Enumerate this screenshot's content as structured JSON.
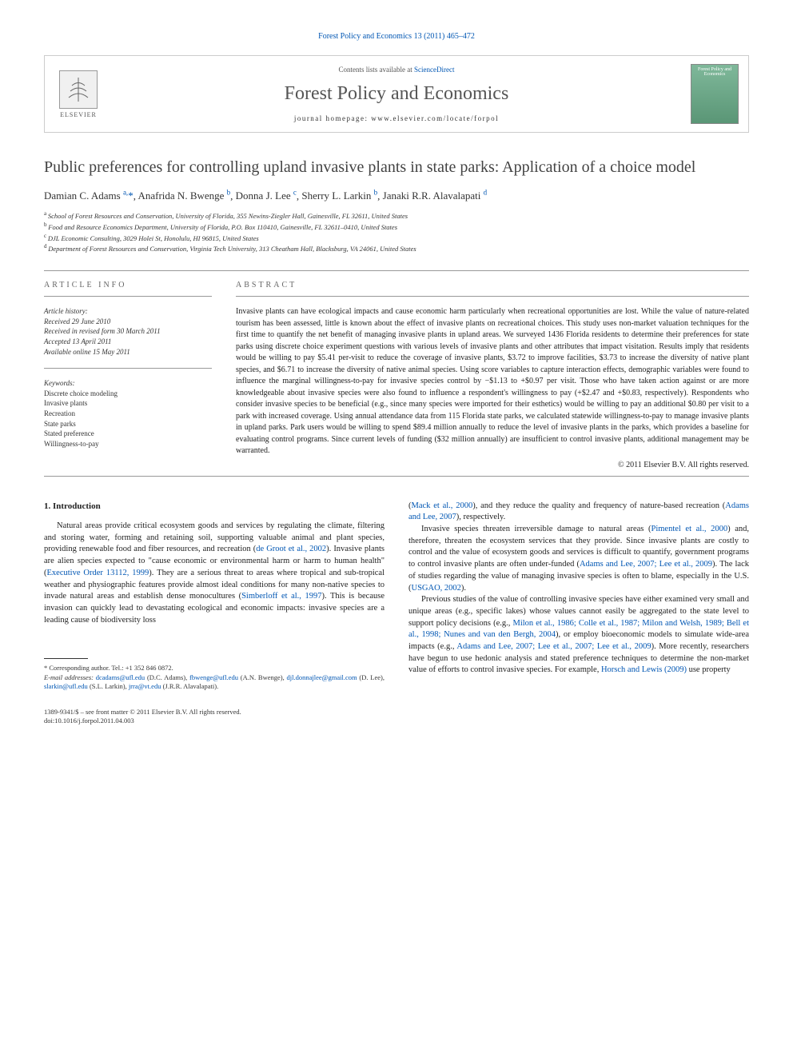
{
  "journal_ref": "Forest Policy and Economics 13 (2011) 465–472",
  "header": {
    "elsevier": "ELSEVIER",
    "contents_prefix": "Contents lists available at ",
    "contents_link": "ScienceDirect",
    "journal_name": "Forest Policy and Economics",
    "homepage": "journal homepage: www.elsevier.com/locate/forpol",
    "cover_label": "Forest Policy and Economics"
  },
  "title": "Public preferences for controlling upland invasive plants in state parks: Application of a choice model",
  "authors_html": "Damian C. Adams <sup>a,</sup>*, Anafrida N. Bwenge <sup>b</sup>, Donna J. Lee <sup>c</sup>, Sherry L. Larkin <sup>b</sup>, Janaki R.R. Alavalapati <sup>d</sup>",
  "authors": [
    {
      "name": "Damian C. Adams",
      "aff": "a",
      "corr": true
    },
    {
      "name": "Anafrida N. Bwenge",
      "aff": "b",
      "corr": false
    },
    {
      "name": "Donna J. Lee",
      "aff": "c",
      "corr": false
    },
    {
      "name": "Sherry L. Larkin",
      "aff": "b",
      "corr": false
    },
    {
      "name": "Janaki R.R. Alavalapati",
      "aff": "d",
      "corr": false
    }
  ],
  "affiliations": [
    {
      "key": "a",
      "text": "School of Forest Resources and Conservation, University of Florida, 355 Newins-Ziegler Hall, Gainesville, FL 32611, United States"
    },
    {
      "key": "b",
      "text": "Food and Resource Economics Department, University of Florida, P.O. Box 110410, Gainesville, FL 32611–0410, United States"
    },
    {
      "key": "c",
      "text": "DJL Economic Consulting, 3029 Holei St, Honolulu, HI 96815, United States"
    },
    {
      "key": "d",
      "text": "Department of Forest Resources and Conservation, Virginia Tech University, 313 Cheatham Hall, Blacksburg, VA 24061, United States"
    }
  ],
  "article_info_label": "ARTICLE INFO",
  "history": {
    "label": "Article history:",
    "received": "Received 29 June 2010",
    "revised": "Received in revised form 30 March 2011",
    "accepted": "Accepted 13 April 2011",
    "online": "Available online 15 May 2011"
  },
  "keywords": {
    "label": "Keywords:",
    "items": [
      "Discrete choice modeling",
      "Invasive plants",
      "Recreation",
      "State parks",
      "Stated preference",
      "Willingness-to-pay"
    ]
  },
  "abstract_label": "ABSTRACT",
  "abstract": "Invasive plants can have ecological impacts and cause economic harm particularly when recreational opportunities are lost. While the value of nature-related tourism has been assessed, little is known about the effect of invasive plants on recreational choices. This study uses non-market valuation techniques for the first time to quantify the net benefit of managing invasive plants in upland areas. We surveyed 1436 Florida residents to determine their preferences for state parks using discrete choice experiment questions with various levels of invasive plants and other attributes that impact visitation. Results imply that residents would be willing to pay $5.41 per-visit to reduce the coverage of invasive plants, $3.72 to improve facilities, $3.73 to increase the diversity of native plant species, and $6.71 to increase the diversity of native animal species. Using score variables to capture interaction effects, demographic variables were found to influence the marginal willingness-to-pay for invasive species control by −$1.13 to +$0.97 per visit. Those who have taken action against or are more knowledgeable about invasive species were also found to influence a respondent's willingness to pay (+$2.47 and +$0.83, respectively). Respondents who consider invasive species to be beneficial (e.g., since many species were imported for their esthetics) would be willing to pay an additional $0.80 per visit to a park with increased coverage. Using annual attendance data from 115 Florida state parks, we calculated statewide willingness-to-pay to manage invasive plants in upland parks. Park users would be willing to spend $89.4 million annually to reduce the level of invasive plants in the parks, which provides a baseline for evaluating control programs. Since current levels of funding ($32 million annually) are insufficient to control invasive plants, additional management may be warranted.",
  "copyright": "© 2011 Elsevier B.V. All rights reserved.",
  "intro": {
    "heading": "1. Introduction",
    "p1_pre": "Natural areas provide critical ecosystem goods and services by regulating the climate, filtering and storing water, forming and retaining soil, supporting valuable animal and plant species, providing renewable food and fiber resources, and recreation (",
    "p1_cite1": "de Groot et al., 2002",
    "p1_mid1": "). Invasive plants are alien species expected to \"cause economic or environmental harm or harm to human health\" (",
    "p1_cite2": "Executive Order 13112, 1999",
    "p1_mid2": "). They are a serious threat to areas where tropical and sub-tropical weather and physiographic features provide almost ideal conditions for many non-native species to invade natural areas and establish dense monocultures (",
    "p1_cite3": "Simberloff et al., 1997",
    "p1_post": "). This is because invasion can quickly lead to devastating ecological and economic impacts: invasive species are a leading cause of biodiversity loss",
    "p2_pre": "(",
    "p2_cite1": "Mack et al., 2000",
    "p2_mid1": "), and they reduce the quality and frequency of nature-based recreation (",
    "p2_cite2": "Adams and Lee, 2007",
    "p2_post": "), respectively.",
    "p3_pre": "Invasive species threaten irreversible damage to natural areas (",
    "p3_cite1": "Pimentel et al., 2000",
    "p3_mid1": ") and, therefore, threaten the ecosystem services that they provide. Since invasive plants are costly to control and the value of ecosystem goods and services is difficult to quantify, government programs to control invasive plants are often under-funded (",
    "p3_cite2": "Adams and Lee, 2007; Lee et al., 2009",
    "p3_mid2": "). The lack of studies regarding the value of managing invasive species is often to blame, especially in the U.S. (",
    "p3_cite3": "USGAO, 2002",
    "p3_post": ").",
    "p4_pre": "Previous studies of the value of controlling invasive species have either examined very small and unique areas (e.g., specific lakes) whose values cannot easily be aggregated to the state level to support policy decisions (e.g., ",
    "p4_cite1": "Milon et al., 1986; Colle et al., 1987; Milon and Welsh, 1989; Bell et al., 1998; Nunes and van den Bergh, 2004",
    "p4_mid1": "), or employ bioeconomic models to simulate wide-area impacts (e.g., ",
    "p4_cite2": "Adams and Lee, 2007; Lee et al., 2007; Lee et al., 2009",
    "p4_mid2": "). More recently, researchers have begun to use hedonic analysis and stated preference techniques to determine the non-market value of efforts to control invasive species. For example, ",
    "p4_cite3": "Horsch and Lewis (2009)",
    "p4_post": " use property"
  },
  "footnotes": {
    "corr": "* Corresponding author. Tel.: +1 352 846 0872.",
    "email_label": "E-mail addresses:",
    "emails": [
      {
        "addr": "dcadams@ufl.edu",
        "who": "(D.C. Adams)"
      },
      {
        "addr": "fbwenge@ufl.edu",
        "who": "(A.N. Bwenge)"
      },
      {
        "addr": "djl.donnajlee@gmail.com",
        "who": "(D. Lee)"
      },
      {
        "addr": "slarkin@ufl.edu",
        "who": "(S.L. Larkin)"
      },
      {
        "addr": "jrra@vt.edu",
        "who": "(J.R.R. Alavalapati)"
      }
    ]
  },
  "footer": {
    "issn": "1389-9341/$ – see front matter © 2011 Elsevier B.V. All rights reserved.",
    "doi": "doi:10.1016/j.forpol.2011.04.003"
  },
  "colors": {
    "link": "#0056b3",
    "text": "#222222",
    "border": "#cccccc",
    "gray_text": "#666666"
  }
}
